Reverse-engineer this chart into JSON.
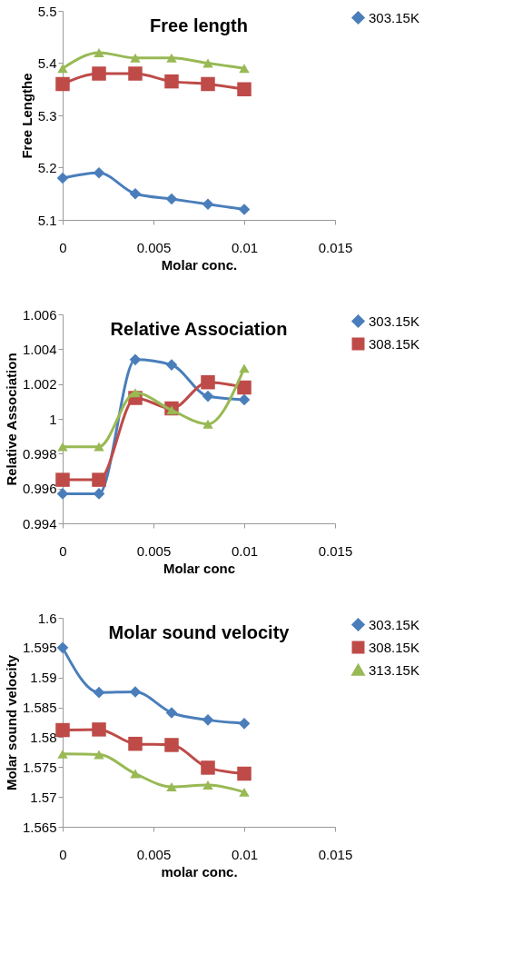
{
  "chart_data": [
    {
      "type": "line",
      "title": "Free length",
      "xlabel": "Molar conc.",
      "ylabel": "Free Lengthe",
      "x": [
        0,
        0.002,
        0.004,
        0.006,
        0.008,
        0.01
      ],
      "xlim": [
        0,
        0.015
      ],
      "xticks": [
        0,
        0.005,
        0.01,
        0.015
      ],
      "ylim": [
        5.1,
        5.5
      ],
      "yticks": [
        5.1,
        5.2,
        5.3,
        5.4,
        5.5
      ],
      "grid": false,
      "legend": "right",
      "line_style": "solid",
      "series": [
        {
          "name": "303.15K",
          "color": "#4a7ebb",
          "marker": "diamond",
          "values": [
            5.18,
            5.19,
            5.15,
            5.14,
            5.13,
            5.12
          ]
        },
        {
          "color": "#be4b48",
          "marker": "square",
          "values": [
            5.36,
            5.38,
            5.38,
            5.365,
            5.36,
            5.35
          ]
        },
        {
          "color": "#98b954",
          "marker": "triangle",
          "values": [
            5.39,
            5.42,
            5.41,
            5.41,
            5.4,
            5.39
          ]
        }
      ]
    },
    {
      "type": "line",
      "title": "Relative Association",
      "xlabel": "Molar conc",
      "ylabel": "Relative Association",
      "x": [
        0,
        0.002,
        0.004,
        0.006,
        0.008,
        0.01
      ],
      "xlim": [
        0,
        0.015
      ],
      "xticks": [
        0,
        0.005,
        0.01,
        0.015
      ],
      "ylim": [
        0.994,
        1.006
      ],
      "yticks": [
        0.994,
        0.996,
        0.998,
        1,
        1.002,
        1.004,
        1.006
      ],
      "grid": false,
      "legend": "right",
      "line_style": "solid",
      "series": [
        {
          "name": "303.15K",
          "color": "#4a7ebb",
          "marker": "diamond",
          "values": [
            0.9957,
            0.9957,
            1.0034,
            1.0031,
            1.0013,
            1.0011
          ]
        },
        {
          "name": "308.15K",
          "color": "#be4b48",
          "marker": "square",
          "values": [
            0.9965,
            0.9965,
            1.0012,
            1.0006,
            1.0021,
            1.0018
          ]
        },
        {
          "color": "#98b954",
          "marker": "triangle",
          "values": [
            0.9984,
            0.9984,
            1.0015,
            1.0005,
            0.9997,
            1.0029
          ]
        }
      ]
    },
    {
      "type": "line",
      "title": "Molar sound velocity",
      "xlabel": "molar conc.",
      "ylabel": "Molar sound velocity",
      "x": [
        0,
        0.002,
        0.004,
        0.006,
        0.008,
        0.01
      ],
      "xlim": [
        0,
        0.015
      ],
      "xticks": [
        0,
        0.005,
        0.01,
        0.015
      ],
      "ylim": [
        1.565,
        1.6
      ],
      "yticks": [
        1.565,
        1.57,
        1.575,
        1.58,
        1.585,
        1.59,
        1.595,
        1.6
      ],
      "grid": false,
      "legend": "top right",
      "line_style": "solid",
      "series": [
        {
          "name": "303.15K",
          "color": "#4a7ebb",
          "marker": "diamond",
          "values": [
            1.595,
            1.5875,
            1.5876,
            1.5841,
            1.5829,
            1.5823
          ]
        },
        {
          "name": "308.15K",
          "color": "#be4b48",
          "marker": "square",
          "values": [
            1.5812,
            1.5813,
            1.5789,
            1.5787,
            1.5749,
            1.5739
          ]
        },
        {
          "name": "313.15K",
          "color": "#98b954",
          "marker": "triangle",
          "values": [
            1.5772,
            1.5771,
            1.5739,
            1.5717,
            1.572,
            1.5708
          ]
        }
      ]
    }
  ]
}
